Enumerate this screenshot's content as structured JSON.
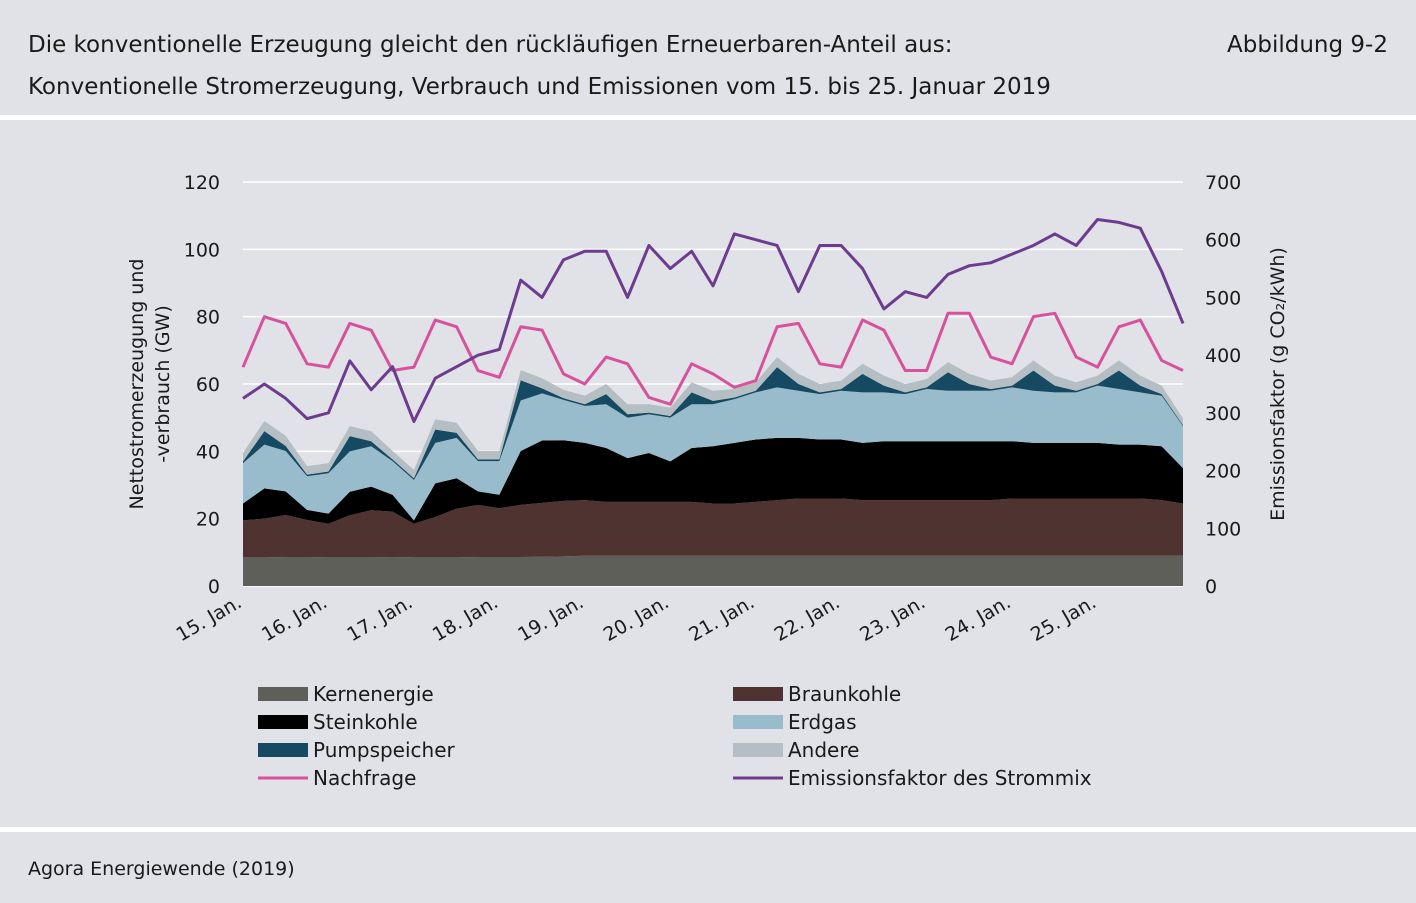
{
  "header": {
    "title_line1": "Die konventionelle Erzeugung gleicht den rückläufigen Erneuerbaren-Anteil aus:",
    "title_line2": "Konventionelle Stromerzeugung, Verbrauch und Emissionen vom 15. bis 25. Januar 2019",
    "figure_label": "Abbildung 9-2"
  },
  "footer": {
    "source": "Agora Energiewende (2019)"
  },
  "chart_data": {
    "type": "area",
    "ylabel_left_line1": "Nettostromerzeugung und",
    "ylabel_left_line2": "-verbrauch (GW)",
    "ylabel_right": "Emissionsfaktor (g CO₂/kWh)",
    "ylim_left": [
      0,
      120
    ],
    "ylim_right": [
      0,
      700
    ],
    "yticks_left": [
      "0",
      "20",
      "40",
      "60",
      "80",
      "100",
      "120"
    ],
    "yticks_right": [
      "0",
      "100",
      "200",
      "300",
      "400",
      "500",
      "600",
      "700"
    ],
    "xticks": [
      "15. Jan.",
      "16. Jan.",
      "17. Jan.",
      "18. Jan.",
      "19. Jan.",
      "20. Jan.",
      "21. Jan.",
      "22. Jan.",
      "23. Jan.",
      "24. Jan.",
      "25. Jan."
    ],
    "x": [
      0,
      0.25,
      0.5,
      0.75,
      1,
      1.25,
      1.5,
      1.75,
      2,
      2.25,
      2.5,
      2.75,
      3,
      3.25,
      3.5,
      3.75,
      4,
      4.25,
      4.5,
      4.75,
      5,
      5.25,
      5.5,
      5.75,
      6,
      6.25,
      6.5,
      6.75,
      7,
      7.25,
      7.5,
      7.75,
      8,
      8.25,
      8.5,
      8.75,
      9,
      9.25,
      9.5,
      9.75,
      10,
      10.25,
      10.5,
      10.75,
      11
    ],
    "grid": true,
    "legend_position": "bottom",
    "stacked_series": [
      {
        "name": "Kernenergie",
        "color": "#5f5f5a",
        "values": [
          8.5,
          8.5,
          8.6,
          8.6,
          8.5,
          8.5,
          8.5,
          8.6,
          8.5,
          8.5,
          8.5,
          8.6,
          8.6,
          8.6,
          8.7,
          8.8,
          9.0,
          9.0,
          9.0,
          9.0,
          9.0,
          9.0,
          9.0,
          9.0,
          9.0,
          9.0,
          9.0,
          9.0,
          9.0,
          9.0,
          9.0,
          9.0,
          9.0,
          9.0,
          9.0,
          9.0,
          9.0,
          9.0,
          9.0,
          9.0,
          9.0,
          9.0,
          9.0,
          9.0,
          9.0
        ]
      },
      {
        "name": "Braunkohle",
        "color": "#4e3331",
        "values": [
          11.0,
          11.5,
          12.5,
          11.0,
          10.0,
          12.5,
          14.0,
          13.5,
          10.0,
          12.0,
          14.5,
          15.5,
          14.5,
          15.5,
          16.0,
          16.5,
          16.5,
          16.0,
          16.0,
          16.0,
          16.0,
          16.0,
          15.5,
          15.5,
          16.0,
          16.5,
          17.0,
          17.0,
          17.0,
          16.5,
          16.5,
          16.5,
          16.5,
          16.5,
          16.5,
          16.5,
          17.0,
          17.0,
          17.0,
          17.0,
          17.0,
          17.0,
          17.0,
          16.5,
          15.5
        ]
      },
      {
        "name": "Steinkohle",
        "color": "#000000",
        "values": [
          5.0,
          9.0,
          7.0,
          3.0,
          3.0,
          7.0,
          7.0,
          5.0,
          1.0,
          10.0,
          9.0,
          4.0,
          4.0,
          16.0,
          18.5,
          18.0,
          17.0,
          16.0,
          13.0,
          14.5,
          12.0,
          16.0,
          17.0,
          18.0,
          18.5,
          18.5,
          18.0,
          17.5,
          17.5,
          17.0,
          17.5,
          17.5,
          17.5,
          17.5,
          17.5,
          17.5,
          17.0,
          16.5,
          16.5,
          16.5,
          16.5,
          16.0,
          16.0,
          16.0,
          10.5
        ]
      },
      {
        "name": "Erdgas",
        "color": "#99bccc",
        "values": [
          12.0,
          13.0,
          12.0,
          10.0,
          12.0,
          12.0,
          12.0,
          10.0,
          12.0,
          12.0,
          12.0,
          9.0,
          10.0,
          15.0,
          14.0,
          12.0,
          11.0,
          13.0,
          12.0,
          11.5,
          13.0,
          13.0,
          12.5,
          13.0,
          14.0,
          15.0,
          14.0,
          13.5,
          14.5,
          15.0,
          14.5,
          14.0,
          15.5,
          15.0,
          15.0,
          15.0,
          16.0,
          15.5,
          15.0,
          15.0,
          17.0,
          16.5,
          15.5,
          15.0,
          12.5
        ]
      },
      {
        "name": "Pumpspeicher",
        "color": "#164a62",
        "values": [
          0.5,
          4.0,
          1.5,
          0.5,
          0.5,
          4.5,
          1.5,
          0.5,
          0.5,
          4.0,
          1.5,
          0.5,
          0.5,
          6.0,
          1.5,
          0.5,
          0.5,
          3.0,
          1.0,
          0.5,
          0.5,
          3.5,
          1.0,
          0.5,
          0.5,
          6.0,
          2.0,
          0.5,
          0.5,
          5.5,
          2.0,
          0.5,
          0.5,
          5.5,
          2.0,
          0.5,
          0.5,
          6.0,
          2.0,
          0.5,
          0.5,
          5.5,
          2.0,
          0.5,
          0.3
        ]
      },
      {
        "name": "Andere",
        "color": "#b4bec3",
        "values": [
          2.5,
          3.0,
          3.0,
          2.5,
          2.5,
          3.0,
          3.0,
          2.5,
          2.5,
          3.0,
          3.0,
          2.5,
          2.5,
          3.0,
          3.0,
          2.5,
          2.5,
          3.0,
          3.0,
          2.5,
          2.5,
          3.0,
          3.0,
          2.5,
          2.5,
          3.0,
          3.0,
          2.5,
          2.5,
          3.0,
          3.0,
          2.5,
          2.5,
          3.0,
          3.0,
          2.5,
          2.5,
          3.0,
          3.0,
          2.5,
          2.5,
          3.0,
          3.0,
          2.5,
          2.0
        ]
      }
    ],
    "line_series": [
      {
        "name": "Nachfrage",
        "color": "#d8519d",
        "axis": "left",
        "values": [
          65,
          80,
          78,
          66,
          65,
          78,
          76,
          64,
          65,
          79,
          77,
          64,
          62,
          77,
          76,
          63,
          60,
          68,
          66,
          56,
          54,
          66,
          63,
          59,
          61,
          77,
          78,
          66,
          65,
          79,
          76,
          64,
          64,
          81,
          81,
          68,
          66,
          80,
          81,
          68,
          65,
          77,
          79,
          67,
          64
        ]
      },
      {
        "name": "Emissionsfaktor des Strommix",
        "color": "#6d3c8f",
        "axis": "right",
        "values": [
          325,
          350,
          325,
          290,
          300,
          390,
          340,
          380,
          285,
          360,
          380,
          400,
          410,
          530,
          500,
          565,
          580,
          580,
          500,
          590,
          550,
          580,
          520,
          610,
          600,
          590,
          510,
          590,
          590,
          550,
          480,
          510,
          500,
          540,
          555,
          560,
          575,
          590,
          610,
          590,
          635,
          630,
          620,
          545,
          455
        ]
      }
    ]
  }
}
